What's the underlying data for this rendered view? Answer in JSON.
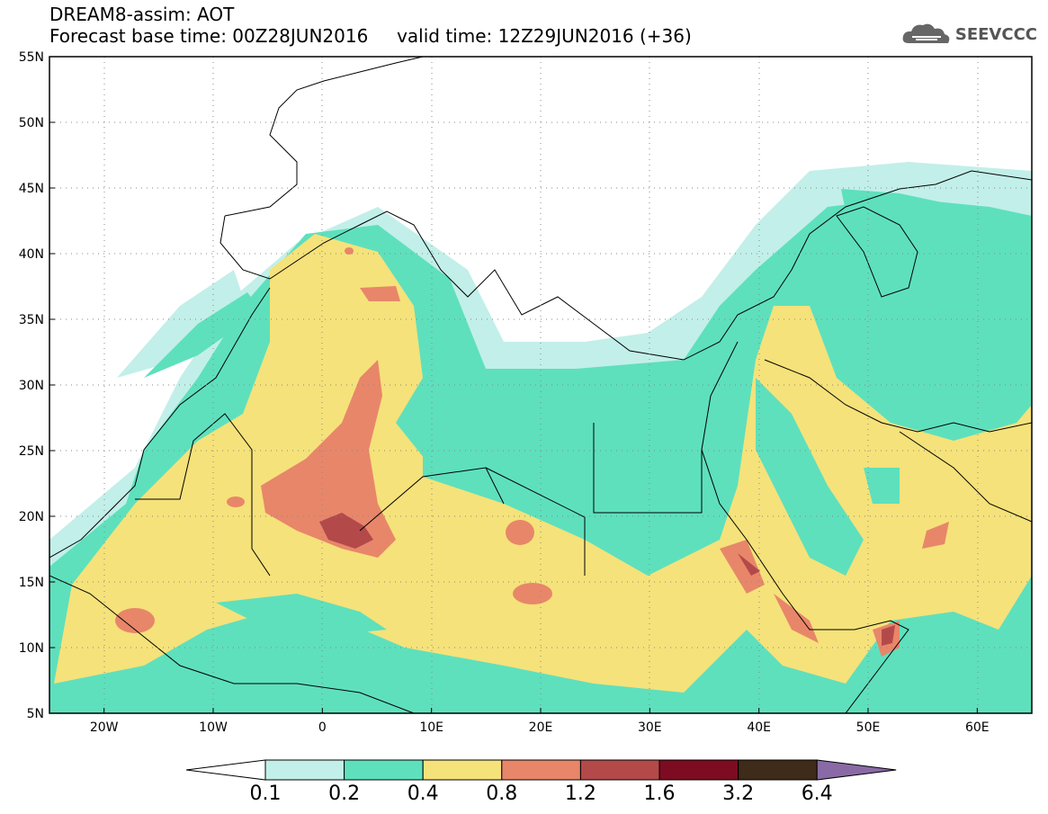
{
  "header": {
    "line1": "DREAM8-assim: AOT",
    "line2": "Forecast base time: 00Z28JUN2016     valid time: 12Z29JUN2016 (+36)",
    "logo_text": "SEEVCCC"
  },
  "map": {
    "lon_range": [
      -25,
      65
    ],
    "lat_range": [
      5,
      55
    ],
    "lat_labels": [
      "55N",
      "50N",
      "45N",
      "40N",
      "35N",
      "30N",
      "25N",
      "20N",
      "15N",
      "10N",
      "5N"
    ],
    "lon_labels": [
      "20W",
      "10W",
      "0",
      "10E",
      "20E",
      "30E",
      "40E",
      "50E",
      "60E"
    ]
  },
  "colorbar": {
    "labels": [
      "0.1",
      "0.2",
      "0.4",
      "0.8",
      "1.2",
      "1.6",
      "3.2",
      "6.4"
    ],
    "colors": [
      "#ffffff",
      "#c2efe9",
      "#5ee0bd",
      "#f5e27a",
      "#e8866a",
      "#b4494a",
      "#7d0c22",
      "#3f2b19",
      "#8a6aa6"
    ]
  }
}
